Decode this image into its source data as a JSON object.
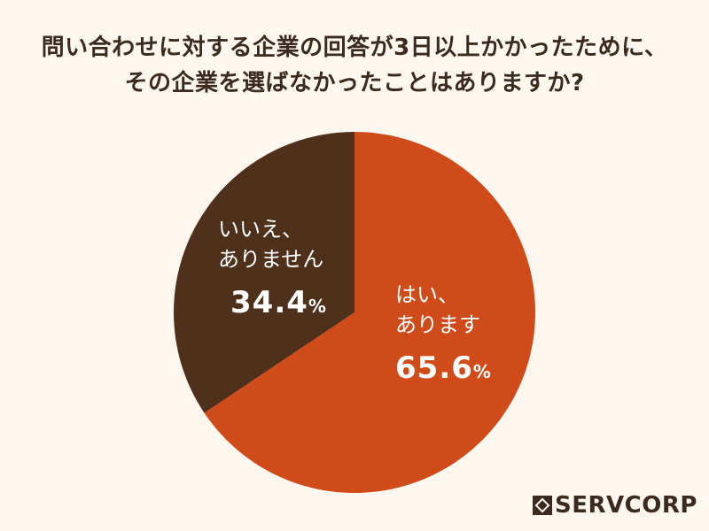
{
  "title": {
    "line1": "問い合わせに対する企業の回答が3日以上かかったために、",
    "line2": "その企業を選ばなかったことはありますか?"
  },
  "colors": {
    "background": "#fdf7f0",
    "yes": "#cf4b19",
    "no": "#4f301b",
    "title_text": "#3b2a1e",
    "label_text": "#ffffff"
  },
  "chart_data": {
    "type": "pie",
    "title": "問い合わせに対する企業の回答が3日以上かかったために、その企業を選ばなかったことはありますか?",
    "categories": [
      "はい、あります",
      "いいえ、ありません"
    ],
    "values": [
      65.6,
      34.4
    ],
    "unit": "%",
    "start_angle": "12 o'clock, clockwise",
    "legend": "none (labels inside slices)"
  },
  "labels": {
    "yes": {
      "line1": "はい、",
      "line2": "あります",
      "value": "65.6",
      "unit": "%"
    },
    "no": {
      "line1": "いいえ、",
      "line2": "ありません",
      "value": "34.4",
      "unit": "%"
    }
  },
  "logo": {
    "text": "SERVCORP"
  }
}
